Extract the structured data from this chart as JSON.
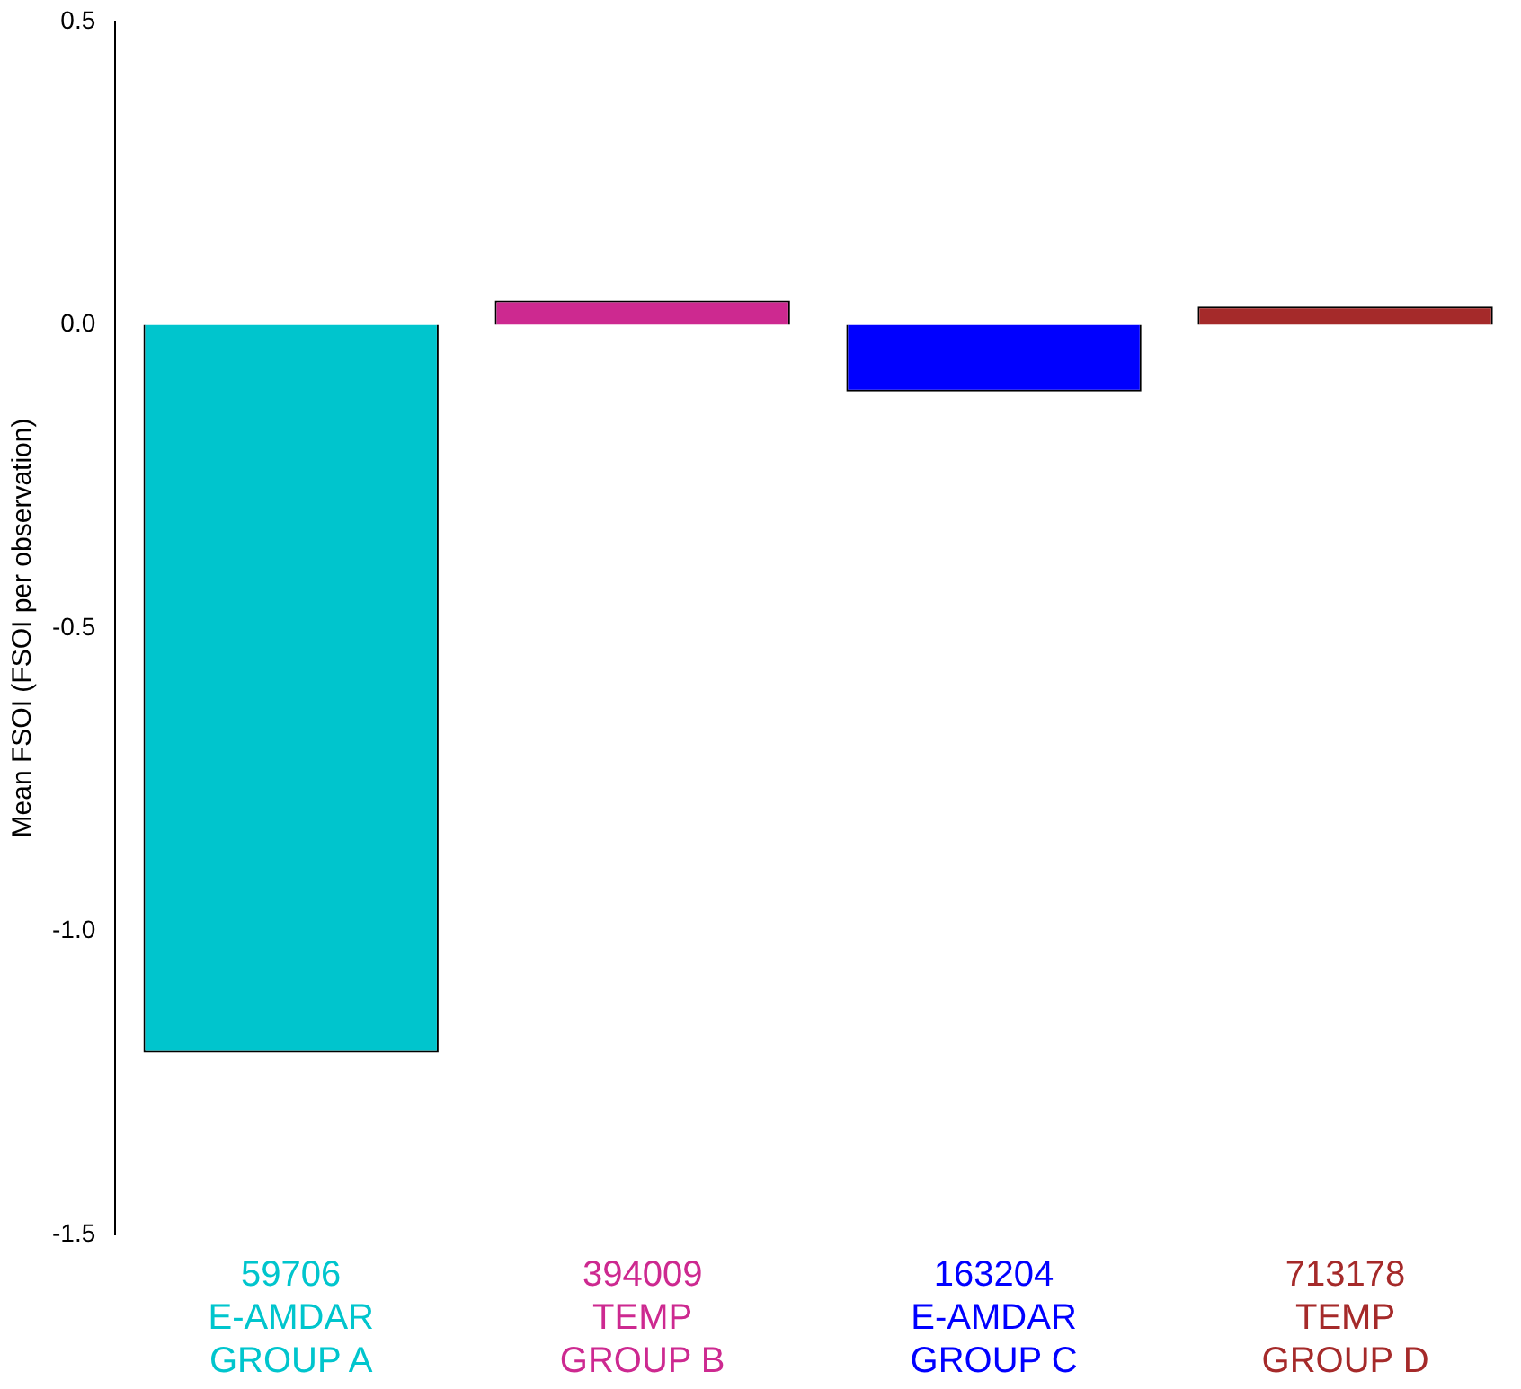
{
  "chart_data": {
    "type": "bar",
    "ylabel": "Mean FSOI (FSOI per observation)",
    "categories": [
      "59706\nE-AMDAR\nGROUP A",
      "394009\nTEMP\nGROUP B",
      "163204\nE-AMDAR\nGROUP C",
      "713178\nTEMP\nGROUP D"
    ],
    "values": [
      -1.2,
      0.04,
      -0.11,
      0.03
    ],
    "colors": [
      "#00c5cd",
      "#cd2990",
      "#0000ff",
      "#a52a2a"
    ],
    "ylim": [
      -1.5,
      0.5
    ],
    "yticks": [
      -1.5,
      {
        "value": -1,
        "label": "-1.0"
      },
      -0.5,
      {
        "value": 0,
        "label": "0.0"
      },
      0.5
    ],
    "grid": false,
    "legend": false
  }
}
